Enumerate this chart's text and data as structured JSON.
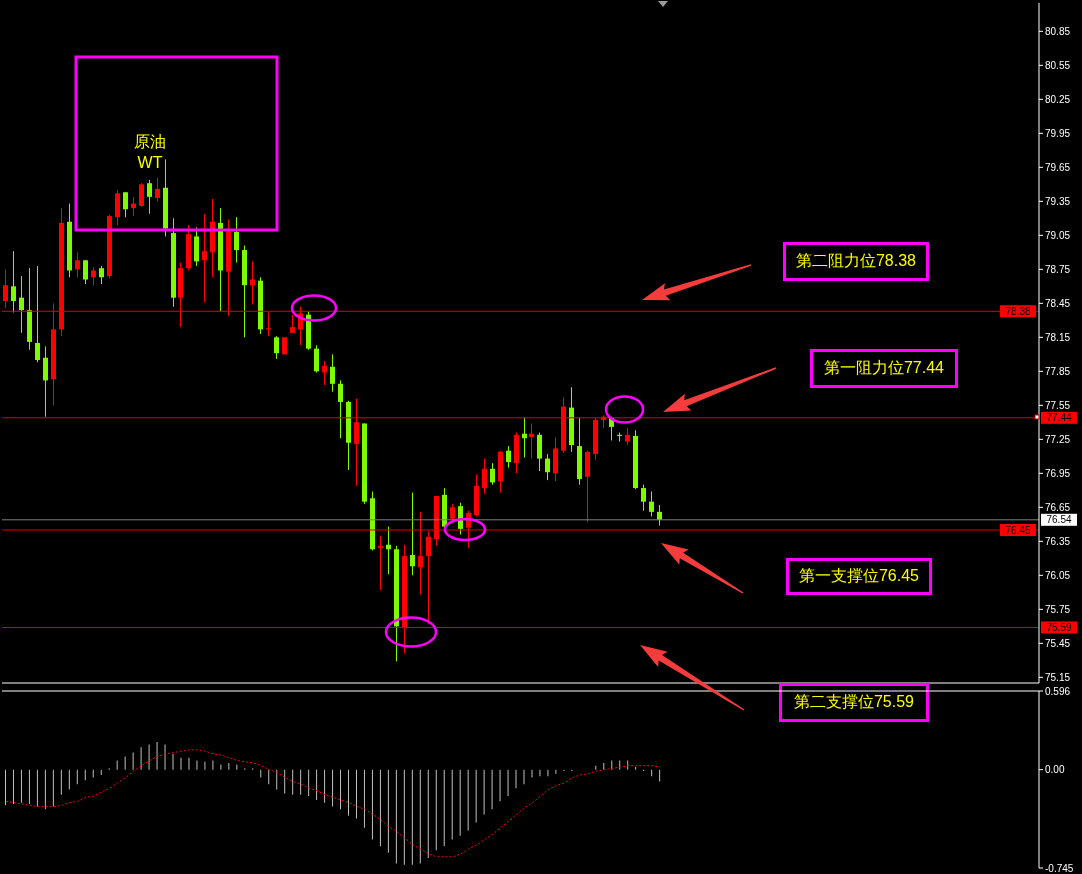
{
  "chart_data": [
    {
      "type": "candlestick",
      "title": "原油",
      "subtitle": "WT",
      "annotations": [
        "第二阻力位78.38",
        "第一阻力位77.44",
        "第一支撑位76.45",
        "第二支撑位75.59"
      ],
      "categories": [
        null,
        null,
        null,
        null,
        null,
        null,
        null,
        null,
        null,
        null,
        null,
        null,
        null,
        null,
        null,
        null,
        null,
        null,
        null,
        null,
        null,
        null,
        null,
        null,
        null,
        null,
        null,
        null,
        null,
        null,
        null,
        null,
        null,
        null,
        null,
        null,
        null,
        null,
        null,
        null,
        null,
        null,
        null,
        null,
        null,
        null,
        null,
        null,
        null,
        null,
        null,
        null,
        null,
        null,
        null,
        null,
        null,
        null,
        null,
        null,
        null,
        null,
        null,
        null,
        null,
        null,
        null,
        null,
        null,
        null,
        null,
        null,
        null,
        null,
        null,
        null,
        null,
        null,
        null,
        null,
        null,
        null,
        null,
        null,
        null,
        null,
        null,
        null,
        null,
        null,
        null,
        null,
        null,
        null,
        null,
        null,
        null,
        null,
        null,
        null,
        null,
        null,
        null,
        null,
        null,
        null,
        null,
        null,
        null,
        null,
        null,
        null,
        null,
        null,
        null,
        null,
        null,
        null,
        null,
        null,
        null,
        null,
        null,
        null,
        null,
        null,
        null,
        null,
        null,
        null
      ],
      "ohlc": [
        [
          78.47,
          78.75,
          78.41,
          78.61
        ],
        [
          78.6,
          78.91,
          78.37,
          78.47
        ],
        [
          78.5,
          78.69,
          78.19,
          78.39
        ],
        [
          78.39,
          78.76,
          78.04,
          78.11
        ],
        [
          78.1,
          78.78,
          77.93,
          77.95
        ],
        [
          77.97,
          78.07,
          77.45,
          77.77
        ],
        [
          77.78,
          78.45,
          77.55,
          78.22
        ],
        [
          78.22,
          79.29,
          78.16,
          79.16
        ],
        [
          79.17,
          79.33,
          78.68,
          78.74
        ],
        [
          78.75,
          78.9,
          78.68,
          78.83
        ],
        [
          78.83,
          78.83,
          78.62,
          78.66
        ],
        [
          78.68,
          78.77,
          78.61,
          78.74
        ],
        [
          78.76,
          78.78,
          78.62,
          78.68
        ],
        [
          78.69,
          79.23,
          78.67,
          79.22
        ],
        [
          79.21,
          79.45,
          79.14,
          79.42
        ],
        [
          79.43,
          79.43,
          79.21,
          79.28
        ],
        [
          79.29,
          79.39,
          79.22,
          79.33
        ],
        [
          79.31,
          79.51,
          79.3,
          79.5
        ],
        [
          79.51,
          79.54,
          79.24,
          79.39
        ],
        [
          79.38,
          79.56,
          79.35,
          79.46
        ],
        [
          79.47,
          79.72,
          79.04,
          79.11
        ],
        [
          79.07,
          79.2,
          78.42,
          78.5
        ],
        [
          78.5,
          78.81,
          78.24,
          78.76
        ],
        [
          78.76,
          79.14,
          78.74,
          79.06
        ],
        [
          79.04,
          79.12,
          78.78,
          78.82
        ],
        [
          78.83,
          79.24,
          78.46,
          78.91
        ],
        [
          78.9,
          79.37,
          78.68,
          79.17
        ],
        [
          79.16,
          79.29,
          78.38,
          78.74
        ],
        [
          78.73,
          79.19,
          78.34,
          79.08
        ],
        [
          79.08,
          79.21,
          78.81,
          78.92
        ],
        [
          78.92,
          78.96,
          78.15,
          78.61
        ],
        [
          78.61,
          78.82,
          78.44,
          78.66
        ],
        [
          78.65,
          78.68,
          78.18,
          78.22
        ],
        [
          78.22,
          78.37,
          78.16,
          78.23
        ],
        [
          78.15,
          78.16,
          77.96,
          78.01
        ],
        [
          78.0,
          78.15,
          78.0,
          78.15
        ],
        [
          78.19,
          78.35,
          78.19,
          78.24
        ],
        [
          78.22,
          78.42,
          78.08,
          78.36
        ],
        [
          78.35,
          78.38,
          78.04,
          78.05
        ],
        [
          78.05,
          78.08,
          77.84,
          77.85
        ],
        [
          77.84,
          77.94,
          77.73,
          77.9
        ],
        [
          77.89,
          78.0,
          77.67,
          77.74
        ],
        [
          77.74,
          77.77,
          77.26,
          77.58
        ],
        [
          77.58,
          77.59,
          76.98,
          77.22
        ],
        [
          77.21,
          77.61,
          76.84,
          77.4
        ],
        [
          77.39,
          77.39,
          76.68,
          76.7
        ],
        [
          76.73,
          76.79,
          76.27,
          76.28
        ],
        [
          76.29,
          76.4,
          75.92,
          76.31
        ],
        [
          76.32,
          76.48,
          76.06,
          76.28
        ],
        [
          76.28,
          76.31,
          75.29,
          75.6
        ],
        [
          75.59,
          76.32,
          75.36,
          76.22
        ],
        [
          76.23,
          76.78,
          76.05,
          76.13
        ],
        [
          76.12,
          76.61,
          75.88,
          76.22
        ],
        [
          76.22,
          76.44,
          75.62,
          76.39
        ],
        [
          76.37,
          76.75,
          76.31,
          76.75
        ],
        [
          76.76,
          76.82,
          76.47,
          76.48
        ],
        [
          76.55,
          76.68,
          76.54,
          76.65
        ],
        [
          76.66,
          76.69,
          76.41,
          76.46
        ],
        [
          76.47,
          76.62,
          76.29,
          76.6
        ],
        [
          76.58,
          76.94,
          76.57,
          76.84
        ],
        [
          76.82,
          77.08,
          76.77,
          76.99
        ],
        [
          76.99,
          77.04,
          76.85,
          76.87
        ],
        [
          76.88,
          77.15,
          76.78,
          77.14
        ],
        [
          77.15,
          77.19,
          77.0,
          77.05
        ],
        [
          77.04,
          77.31,
          76.95,
          77.29
        ],
        [
          77.3,
          77.44,
          77.09,
          77.26
        ],
        [
          77.27,
          77.39,
          77.08,
          77.3
        ],
        [
          77.29,
          77.31,
          76.97,
          77.08
        ],
        [
          77.08,
          77.12,
          76.89,
          76.96
        ],
        [
          76.95,
          77.27,
          76.88,
          77.17
        ],
        [
          77.15,
          77.62,
          77.13,
          77.54
        ],
        [
          77.53,
          77.71,
          77.14,
          77.2
        ],
        [
          77.19,
          77.44,
          76.85,
          76.9
        ],
        [
          76.92,
          77.15,
          76.52,
          77.14
        ],
        [
          77.12,
          77.44,
          77.07,
          77.42
        ],
        [
          77.42,
          77.46,
          77.35,
          77.45
        ],
        [
          77.44,
          77.45,
          77.24,
          77.36
        ],
        [
          77.29,
          77.31,
          77.23,
          77.28
        ],
        [
          77.23,
          77.35,
          77.2,
          77.29
        ],
        [
          77.28,
          77.33,
          76.81,
          76.82
        ],
        [
          76.82,
          76.85,
          76.62,
          76.7
        ],
        [
          76.7,
          76.79,
          76.57,
          76.61
        ],
        [
          76.61,
          76.67,
          76.49,
          76.54
        ],
        null,
        null,
        null,
        null,
        null,
        null,
        null,
        null,
        null,
        null,
        null,
        null,
        null,
        null,
        null,
        null,
        null,
        null,
        null,
        null,
        null,
        null,
        null,
        null,
        null,
        null,
        null,
        null,
        null,
        null,
        null,
        null,
        null,
        null,
        null,
        null,
        null,
        null,
        null,
        null,
        null,
        null,
        null,
        null,
        null,
        null,
        null
      ],
      "colors": [
        "#ff0000",
        "#7cfc00",
        "#7cfc00",
        "#7cfc00",
        "#7cfc00",
        "#7cfc00",
        "#ff0000",
        "#ff0000",
        "#7cfc00",
        "#ff0000",
        "#7cfc00",
        "#ff0000",
        "#7cfc00",
        "#ff0000",
        "#ff0000",
        "#7cfc00",
        "#ff0000",
        "#ff0000",
        "#7cfc00",
        "#ff0000",
        "#7cfc00",
        "#7cfc00",
        "#ff0000",
        "#ff0000",
        "#7cfc00",
        "#ff0000",
        "#ff0000",
        "#7cfc00",
        "#ff0000",
        "#7cfc00",
        "#7cfc00",
        "#ff0000",
        "#7cfc00",
        "#ff0000",
        "#7cfc00",
        "#ff0000",
        "#ff0000",
        "#ff0000",
        "#7cfc00",
        "#7cfc00",
        "#ff0000",
        "#7cfc00",
        "#7cfc00",
        "#7cfc00",
        "#ff0000",
        "#7cfc00",
        "#7cfc00",
        "#ff0000",
        "#7cfc00",
        "#7cfc00",
        "#ff0000",
        "#7cfc00",
        "#ff0000",
        "#ff0000",
        "#ff0000",
        "#7cfc00",
        "#ff0000",
        "#7cfc00",
        "#ff0000",
        "#ff0000",
        "#ff0000",
        "#7cfc00",
        "#ff0000",
        "#7cfc00",
        "#ff0000",
        "#7cfc00",
        "#ff0000",
        "#7cfc00",
        "#7cfc00",
        "#ff0000",
        "#ff0000",
        "#7cfc00",
        "#7cfc00",
        "#ff0000",
        "#ff0000",
        "#ff0000",
        "#7cfc00",
        "#7cfc00",
        "#ff0000",
        "#7cfc00",
        "#7cfc00",
        "#7cfc00",
        "#7cfc00",
        null,
        null,
        null,
        null,
        null,
        null,
        null,
        null,
        null,
        null,
        null,
        null,
        null,
        null,
        null,
        null,
        null,
        null,
        null,
        null,
        null,
        null,
        null,
        null,
        null,
        null,
        null,
        null,
        null,
        null,
        null,
        null,
        null,
        null,
        null,
        null,
        null,
        null,
        null,
        null,
        null,
        null,
        null,
        null,
        null,
        null,
        null
      ],
      "ylim": [
        75.1,
        81.1
      ],
      "yticks": [
        75.15,
        75.45,
        75.75,
        76.05,
        76.35,
        76.65,
        76.95,
        77.25,
        77.55,
        77.85,
        78.15,
        78.45,
        78.75,
        79.05,
        79.35,
        79.65,
        79.95,
        80.25,
        80.55,
        80.85
      ],
      "ref_lines": [
        {
          "axis": "y",
          "value": 78.38,
          "label": "78.38",
          "color": "#dd0000"
        },
        {
          "axis": "y",
          "value": 77.44,
          "label": "77.44",
          "color": "#dd0000"
        },
        {
          "axis": "y",
          "value": 76.54,
          "label": "76.54",
          "color": "#808080"
        },
        {
          "axis": "y",
          "value": 76.45,
          "label": "76.45",
          "color": "#dd0000"
        },
        {
          "axis": "y",
          "value": 75.59,
          "label": "75.59",
          "color": "#dd0000"
        }
      ],
      "tick_labels": "y"
    },
    {
      "type": "bar",
      "categories": [
        null,
        null,
        null,
        null,
        null,
        null,
        null,
        null,
        null,
        null,
        null,
        null,
        null,
        null,
        null,
        null,
        null,
        null,
        null,
        null,
        null,
        null,
        null,
        null,
        null,
        null,
        null,
        null,
        null,
        null,
        null,
        null,
        null,
        null,
        null,
        null,
        null,
        null,
        null,
        null,
        null,
        null,
        null,
        null,
        null,
        null,
        null,
        null,
        null,
        null,
        null,
        null,
        null,
        null,
        null,
        null,
        null,
        null,
        null,
        null,
        null,
        null,
        null,
        null,
        null,
        null,
        null,
        null,
        null,
        null,
        null,
        null,
        null,
        null,
        null,
        null,
        null,
        null,
        null,
        null,
        null,
        null,
        null,
        null,
        null,
        null,
        null,
        null,
        null,
        null,
        null,
        null,
        null,
        null,
        null,
        null,
        null,
        null,
        null,
        null,
        null,
        null,
        null,
        null,
        null,
        null,
        null,
        null,
        null,
        null,
        null,
        null,
        null,
        null,
        null,
        null,
        null,
        null,
        null,
        null,
        null,
        null,
        null,
        null,
        null,
        null,
        null,
        null,
        null,
        null
      ],
      "series": [
        {
          "type": "bar",
          "color": "#c0c0c0",
          "values": [
            -0.27,
            -0.26,
            -0.25,
            -0.26,
            -0.28,
            -0.3,
            -0.28,
            -0.19,
            -0.15,
            -0.11,
            -0.08,
            -0.06,
            -0.04,
            0.01,
            0.07,
            0.1,
            0.13,
            0.17,
            0.19,
            0.21,
            0.19,
            0.12,
            0.09,
            0.09,
            0.07,
            0.06,
            0.07,
            0.04,
            0.05,
            0.04,
            0.01,
            0.01,
            -0.06,
            -0.11,
            -0.15,
            -0.18,
            -0.19,
            -0.19,
            -0.2,
            -0.23,
            -0.25,
            -0.28,
            -0.3,
            -0.35,
            -0.37,
            -0.44,
            -0.53,
            -0.58,
            -0.63,
            -0.71,
            -0.72,
            -0.72,
            -0.71,
            -0.67,
            -0.61,
            -0.58,
            -0.53,
            -0.5,
            -0.46,
            -0.4,
            -0.34,
            -0.3,
            -0.24,
            -0.2,
            -0.14,
            -0.11,
            -0.06,
            -0.05,
            -0.05,
            -0.03,
            -0.01,
            -0.01,
            0,
            0,
            0.03,
            0.05,
            0.07,
            0.07,
            0.07,
            0.02,
            -0.01,
            -0.05,
            -0.09,
            null,
            null,
            null,
            null,
            null,
            null,
            null,
            null,
            null,
            null,
            null,
            null,
            null,
            null,
            null,
            null,
            null,
            null,
            null,
            null,
            null,
            null,
            null,
            null,
            null,
            null,
            null,
            null,
            null,
            null,
            null,
            null,
            null,
            null,
            null,
            null,
            null,
            null,
            null,
            null,
            null,
            null,
            null,
            null,
            null,
            null,
            null
          ]
        },
        {
          "type": "line",
          "color": "#ff0000",
          "line_style": "dotted",
          "values": [
            -0.24,
            -0.25,
            -0.26,
            -0.27,
            -0.28,
            -0.28,
            -0.28,
            -0.27,
            -0.25,
            -0.24,
            -0.21,
            -0.2,
            -0.17,
            -0.14,
            -0.1,
            -0.06,
            -0.01,
            0.03,
            0.07,
            0.1,
            0.12,
            0.13,
            0.14,
            0.15,
            0.15,
            0.14,
            0.12,
            0.11,
            0.09,
            0.07,
            0.06,
            0.05,
            0.03,
            0.0,
            -0.02,
            -0.06,
            -0.09,
            -0.11,
            -0.14,
            -0.16,
            -0.19,
            -0.21,
            -0.23,
            -0.25,
            -0.28,
            -0.3,
            -0.34,
            -0.38,
            -0.43,
            -0.47,
            -0.52,
            -0.57,
            -0.6,
            -0.64,
            -0.66,
            -0.66,
            -0.66,
            -0.64,
            -0.6,
            -0.57,
            -0.53,
            -0.49,
            -0.44,
            -0.39,
            -0.34,
            -0.29,
            -0.25,
            -0.2,
            -0.15,
            -0.12,
            -0.1,
            -0.06,
            -0.04,
            -0.03,
            -0.01,
            0.0,
            0.01,
            0.02,
            0.03,
            0.03,
            0.03,
            0.03,
            0.02,
            null,
            null,
            null,
            null,
            null,
            null,
            null,
            null,
            null,
            null,
            null,
            null,
            null,
            null,
            null,
            null,
            null,
            null,
            null,
            null,
            null,
            null,
            null,
            null,
            null,
            null,
            null,
            null,
            null,
            null,
            null,
            null,
            null,
            null,
            null,
            null,
            null,
            null,
            null,
            null,
            null,
            null,
            null,
            null,
            null,
            null,
            null
          ]
        }
      ],
      "ylim": [
        -0.745,
        0.596
      ],
      "yticks": [
        -0.745,
        {
          "value": 0,
          "label": "0.00"
        },
        0.596
      ],
      "tick_labels": "y"
    }
  ]
}
